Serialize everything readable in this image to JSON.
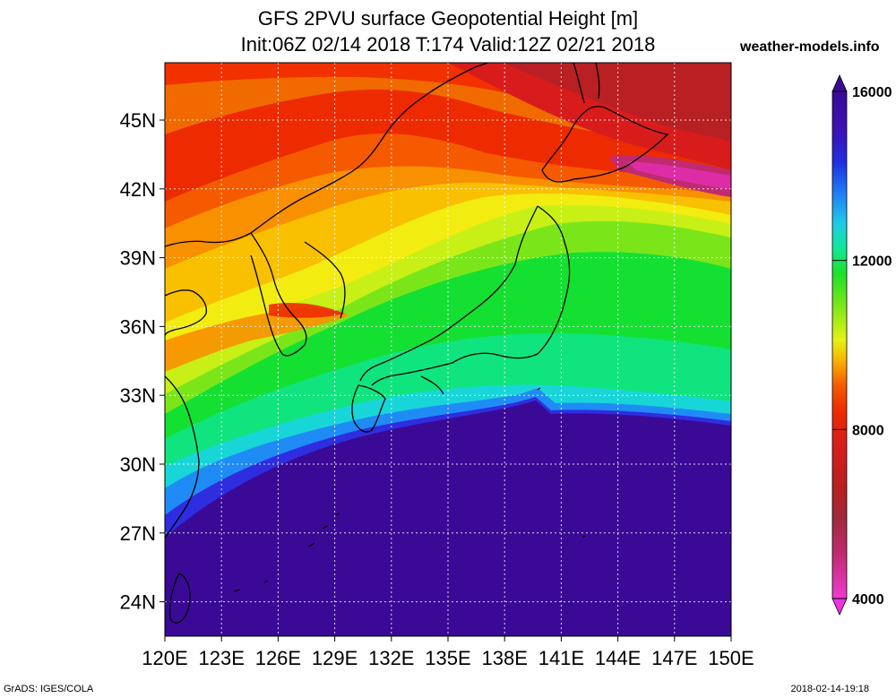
{
  "header": {
    "title_line1": "GFS 2PVU surface Geopotential Height [m]",
    "title_line2": "Init:06Z 02/14 2018 T:174 Valid:12Z 02/21 2018",
    "site": "weather-models.info"
  },
  "map": {
    "lat_labels": [
      "45N",
      "42N",
      "39N",
      "36N",
      "33N",
      "30N",
      "27N",
      "24N"
    ],
    "lon_labels": [
      "120E",
      "123E",
      "126E",
      "129E",
      "132E",
      "135E",
      "138E",
      "141E",
      "144E",
      "147E",
      "150E"
    ],
    "lat_values": [
      45,
      42,
      39,
      36,
      33,
      30,
      27,
      24
    ],
    "lon_values": [
      120,
      123,
      126,
      129,
      132,
      135,
      138,
      141,
      144,
      147,
      150
    ],
    "extent": {
      "lon": [
        120,
        150
      ],
      "lat": [
        22.5,
        47.5
      ]
    }
  },
  "colorbar": {
    "labels": [
      "16000",
      "12000",
      "8000",
      "4000"
    ],
    "colors_top_to_bottom": [
      "#3a0a96",
      "#3c12b8",
      "#1f2fe0",
      "#1e56f0",
      "#1f7cf5",
      "#22a5f6",
      "#1fcbe8",
      "#18e0c4",
      "#10e896",
      "#10e06a",
      "#1fe02a",
      "#4ee31a",
      "#86e818",
      "#b8ee16",
      "#e6f214",
      "#f7e000",
      "#f9b300",
      "#f88500",
      "#f55a00",
      "#ee2a00",
      "#d81c1c",
      "#b82020",
      "#a02a3a",
      "#c02a6e",
      "#de2ca6",
      "#f03ad0"
    ],
    "top_arrow_color": "#3a0a96",
    "bottom_arrow_color": "#ee33dd"
  },
  "footer": {
    "left": "GrADS: IGES/COLA",
    "right": "2018-02-14-19:18"
  }
}
